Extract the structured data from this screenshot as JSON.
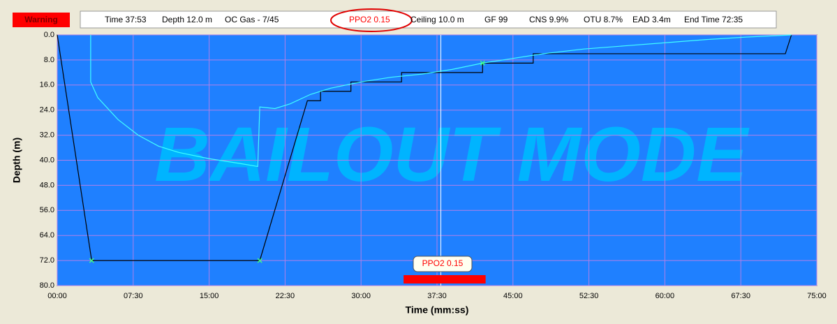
{
  "warning": "Warning",
  "status_bar": {
    "items": [
      "Time 37:53",
      "Depth 12.0 m",
      "OC   Gas - 7/45",
      "PPO2 0.15",
      "Ceiling 10.0 m",
      "GF 99",
      "CNS 9.9%",
      "OTU 8.7%",
      "EAD 3.4m",
      "End Time 72:35"
    ]
  },
  "chart_data": {
    "type": "line",
    "watermark": "BAILOUT MODE",
    "xlabel": "Time (mm:ss)",
    "ylabel": "Depth (m)",
    "xlim": [
      0,
      75
    ],
    "ylim": [
      0,
      80
    ],
    "y_inverted": true,
    "grid": true,
    "xticks": [
      {
        "value": 0,
        "label": "00:00"
      },
      {
        "value": 7.5,
        "label": "07:30"
      },
      {
        "value": 15,
        "label": "15:00"
      },
      {
        "value": 22.5,
        "label": "22:30"
      },
      {
        "value": 30,
        "label": "30:00"
      },
      {
        "value": 37.5,
        "label": "37:30"
      },
      {
        "value": 45,
        "label": "45:00"
      },
      {
        "value": 52.5,
        "label": "52:30"
      },
      {
        "value": 60,
        "label": "60:00"
      },
      {
        "value": 67.5,
        "label": "67:30"
      },
      {
        "value": 75,
        "label": "75:00"
      }
    ],
    "yticks": [
      {
        "value": 0,
        "label": "0.0"
      },
      {
        "value": 8,
        "label": "8.0"
      },
      {
        "value": 16,
        "label": "16.0"
      },
      {
        "value": 24,
        "label": "24.0"
      },
      {
        "value": 32,
        "label": "32.0"
      },
      {
        "value": 40,
        "label": "40.0"
      },
      {
        "value": 48,
        "label": "48.0"
      },
      {
        "value": 56,
        "label": "56.0"
      },
      {
        "value": 64,
        "label": "64.0"
      },
      {
        "value": 72,
        "label": "72.0"
      },
      {
        "value": 80,
        "label": "80.0"
      }
    ],
    "series": [
      {
        "color": "#000000",
        "x": [
          0,
          3.4,
          20,
          24.7,
          26,
          26,
          29,
          29,
          34,
          34,
          42,
          42,
          47,
          47,
          71.9,
          72.5
        ],
        "values": [
          0,
          72,
          72,
          21,
          21,
          18,
          18,
          15,
          15,
          12,
          12,
          9,
          9,
          6,
          6,
          0
        ]
      },
      {
        "color": "#40ffff",
        "x": [
          3.3,
          3.3,
          4,
          6,
          8,
          10,
          12,
          15,
          18,
          19.8,
          20,
          21.5,
          23,
          25,
          27,
          30,
          33,
          36,
          39,
          42,
          45,
          48,
          52,
          56,
          60,
          64,
          68,
          72.5
        ],
        "values": [
          0,
          15,
          20,
          27,
          32,
          35.5,
          37.5,
          39.5,
          41,
          42,
          23,
          23.5,
          22,
          19,
          17,
          15,
          13.5,
          12.5,
          11,
          9,
          7.5,
          6,
          4.5,
          3.5,
          2.5,
          1.5,
          0.7,
          0
        ]
      }
    ],
    "markers": {
      "color": "#40ff80",
      "x": [
        3.4,
        20,
        42
      ],
      "y": [
        72,
        72,
        9
      ]
    },
    "cursor_x": 37.88,
    "highlight": {
      "color": "#ff0000",
      "x": [
        34.2,
        42.3
      ],
      "label": "PPO2 0.15"
    }
  }
}
